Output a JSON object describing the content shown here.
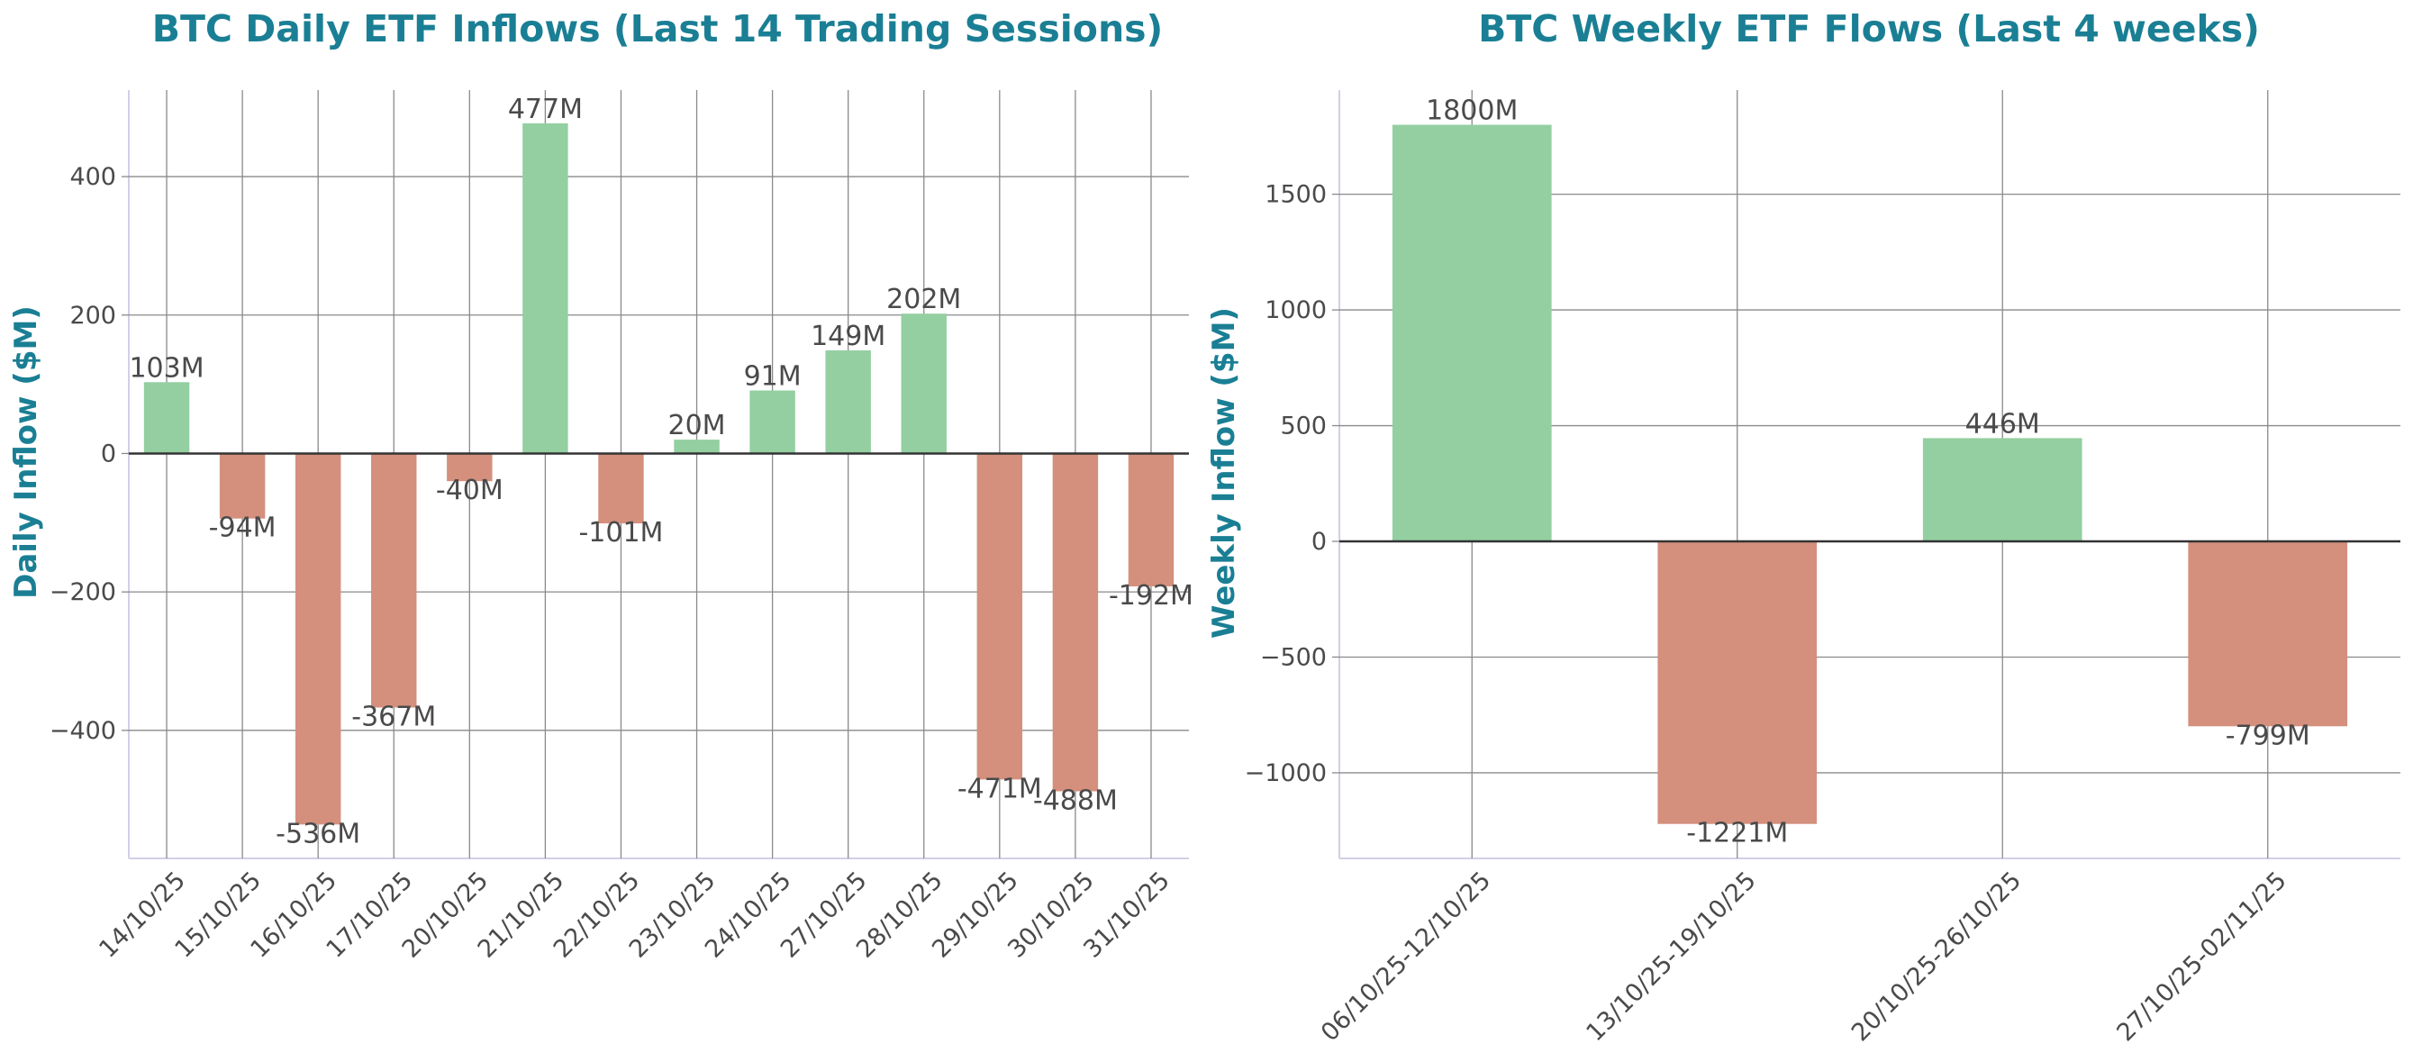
{
  "theme": {
    "positive_color": "#93cfa1",
    "negative_color": "#d4907d",
    "title_color": "#1a7f94",
    "text_color": "#4a4a4a",
    "grid_color": "#8a8a8a",
    "zero_line_color": "#333333",
    "axis_color": "#d0d0e6"
  },
  "chart_data": [
    {
      "type": "bar",
      "title": "BTC Daily ETF Inflows (Last 14 Trading Sessions)",
      "xlabel": "",
      "ylabel": "Daily Inflow ($M)",
      "ylim": [
        -585,
        525
      ],
      "yticks": [
        -400,
        -200,
        0,
        200,
        400
      ],
      "ytick_labels": [
        "−400",
        "−200",
        "0",
        "200",
        "400"
      ],
      "categories": [
        "14/10/25",
        "15/10/25",
        "16/10/25",
        "17/10/25",
        "20/10/25",
        "21/10/25",
        "22/10/25",
        "23/10/25",
        "24/10/25",
        "27/10/25",
        "28/10/25",
        "29/10/25",
        "30/10/25",
        "31/10/25"
      ],
      "values": [
        103,
        -94,
        -536,
        -367,
        -40,
        477,
        -101,
        20,
        91,
        149,
        202,
        -471,
        -488,
        -192
      ],
      "data_labels": [
        "103M",
        "-94M",
        "-536M",
        "-367M",
        "-40M",
        "477M",
        "-101M",
        "20M",
        "91M",
        "149M",
        "202M",
        "-471M",
        "-488M",
        "-192M"
      ],
      "grid": true
    },
    {
      "type": "bar",
      "title": "BTC Weekly ETF Flows (Last 4 weeks)",
      "xlabel": "",
      "ylabel": "Weekly Inflow ($M)",
      "ylim": [
        -1370,
        1950
      ],
      "yticks": [
        -1000,
        -500,
        0,
        500,
        1000,
        1500
      ],
      "ytick_labels": [
        "−1000",
        "−500",
        "0",
        "500",
        "1000",
        "1500"
      ],
      "categories": [
        "06/10/25-12/10/25",
        "13/10/25-19/10/25",
        "20/10/25-26/10/25",
        "27/10/25-02/11/25"
      ],
      "values": [
        1800,
        -1221,
        446,
        -799
      ],
      "data_labels": [
        "1800M",
        "-1221M",
        "446M",
        "-799M"
      ],
      "grid": true
    }
  ]
}
